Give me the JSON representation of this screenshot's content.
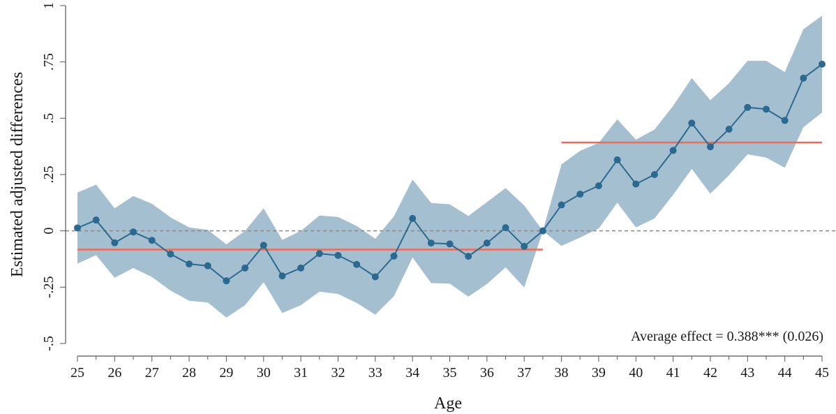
{
  "chart_data": {
    "type": "line",
    "xlabel": "Age",
    "ylabel": "Estimated adjusted differences",
    "xlim": [
      25,
      45
    ],
    "ylim": [
      -0.5,
      1
    ],
    "x_ticks": [
      25,
      26,
      27,
      28,
      29,
      30,
      31,
      32,
      33,
      34,
      35,
      36,
      37,
      38,
      39,
      40,
      41,
      42,
      43,
      44,
      45
    ],
    "x_tick_labels": [
      "25",
      "26",
      "27",
      "28",
      "29",
      "30",
      "31",
      "32",
      "33",
      "34",
      "35",
      "36",
      "37",
      "38",
      "39",
      "40",
      "41",
      "42",
      "43",
      "44",
      "45"
    ],
    "y_ticks": [
      -0.5,
      -0.25,
      0,
      0.25,
      0.5,
      0.75,
      1
    ],
    "y_tick_labels": [
      "-.5",
      "-.25",
      "0",
      ".25",
      ".5",
      ".75",
      "1"
    ],
    "grid": false,
    "series": [
      {
        "x": [
          25,
          25.5,
          26,
          26.5,
          27,
          27.5,
          28,
          28.5,
          29,
          29.5,
          30,
          30.5,
          31,
          31.5,
          32,
          32.5,
          33,
          33.5,
          34,
          34.5,
          35,
          35.5,
          36,
          36.5,
          37,
          37.5,
          38,
          38.5,
          39,
          39.5,
          40,
          40.5,
          41,
          41.5,
          42,
          42.5,
          43,
          43.5,
          44,
          44.5,
          45
        ],
        "y": [
          0.013,
          0.048,
          -0.053,
          -0.005,
          -0.042,
          -0.103,
          -0.147,
          -0.155,
          -0.222,
          -0.165,
          -0.064,
          -0.2,
          -0.165,
          -0.101,
          -0.109,
          -0.149,
          -0.204,
          -0.112,
          0.055,
          -0.054,
          -0.058,
          -0.113,
          -0.054,
          0.014,
          -0.069,
          0,
          0.115,
          0.163,
          0.2,
          0.315,
          0.208,
          0.25,
          0.357,
          0.478,
          0.373,
          0.451,
          0.548,
          0.54,
          0.49,
          0.678,
          0.74
        ],
        "ci_upper": [
          0.17,
          0.205,
          0.1,
          0.155,
          0.12,
          0.06,
          0.015,
          0.005,
          -0.06,
          0.0,
          0.1,
          -0.04,
          0.0,
          0.068,
          0.062,
          0.022,
          -0.035,
          0.065,
          0.228,
          0.124,
          0.118,
          0.066,
          0.128,
          0.19,
          0.113,
          0.0,
          0.295,
          0.355,
          0.39,
          0.495,
          0.405,
          0.45,
          0.555,
          0.678,
          0.58,
          0.655,
          0.755,
          0.755,
          0.705,
          0.895,
          0.955
        ],
        "ci_lower": [
          -0.145,
          -0.108,
          -0.208,
          -0.165,
          -0.205,
          -0.265,
          -0.31,
          -0.318,
          -0.385,
          -0.33,
          -0.228,
          -0.365,
          -0.33,
          -0.27,
          -0.28,
          -0.32,
          -0.372,
          -0.29,
          -0.118,
          -0.232,
          -0.234,
          -0.292,
          -0.236,
          -0.162,
          -0.251,
          0.0,
          -0.067,
          -0.03,
          0.01,
          0.125,
          0.015,
          0.055,
          0.16,
          0.275,
          0.165,
          0.247,
          0.34,
          0.325,
          0.28,
          0.46,
          0.525
        ]
      }
    ],
    "reference_line": {
      "y": 0,
      "style": "dashed"
    },
    "average_lines": [
      {
        "x_start": 25,
        "x_end": 37.5,
        "y": -0.083
      },
      {
        "x_start": 38,
        "x_end": 45,
        "y": 0.392
      }
    ],
    "annotation": "Average effect = 0.388*** (0.026)",
    "colors": {
      "line": "#2a6a91",
      "marker": "#2a6a91",
      "ci_band": "#a4bfd0",
      "average_line": "#f26852",
      "reference_line": "#888888",
      "axis": "#555555"
    }
  }
}
